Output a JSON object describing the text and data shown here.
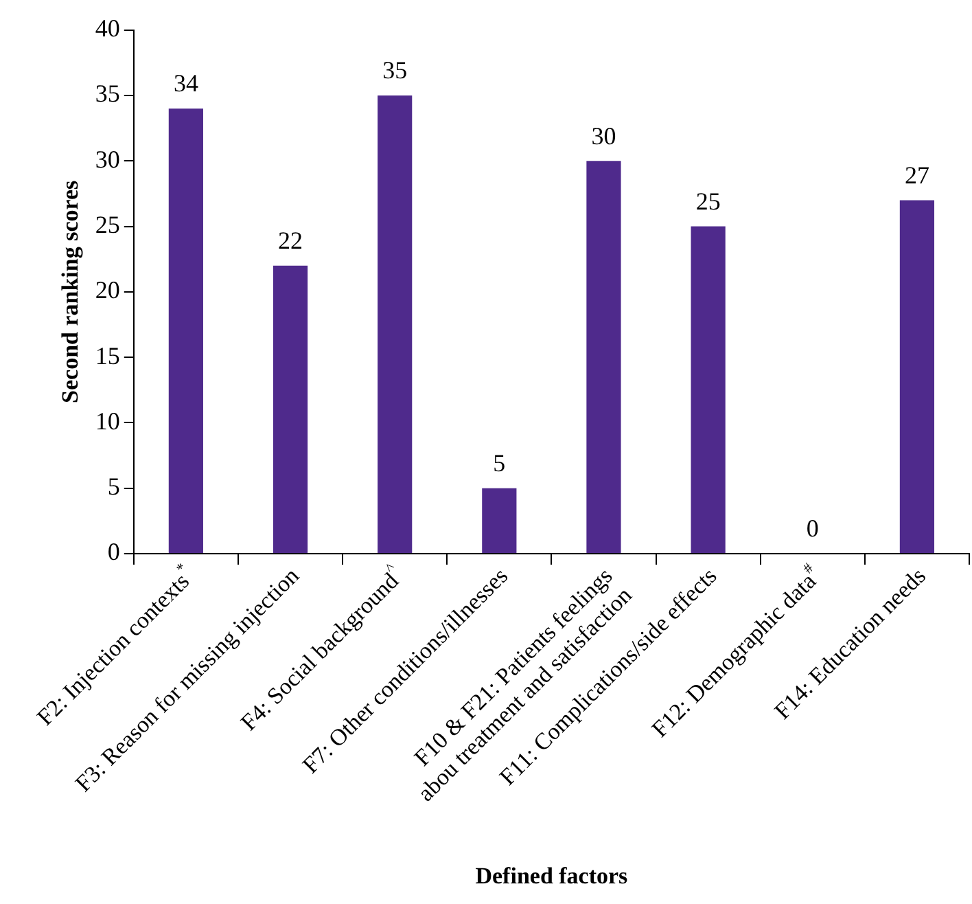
{
  "chart_data": {
    "type": "bar",
    "xlabel": "Defined factors",
    "ylabel": "Second ranking scores",
    "categories": [
      "F2: Injection contexts$^{*}$",
      "F3: Reason for missing injection",
      "F4: Social background$^{^}$",
      "F7: Other conditions/illnesses",
      "F10 & F21: Patients feelings\nabou treatment and satisfaction",
      "F11: Complications/side effects",
      "F12: Demographic data$^{#}$",
      "F14: Education needs"
    ],
    "values": [
      34,
      22,
      35,
      5,
      30,
      25,
      0,
      27
    ],
    "color": "#4f2a8c",
    "ylim": [
      0,
      40
    ],
    "yticks": [
      0,
      5,
      10,
      15,
      20,
      25,
      30,
      35,
      40
    ],
    "grid": false,
    "legend": false,
    "data_labels": true
  }
}
